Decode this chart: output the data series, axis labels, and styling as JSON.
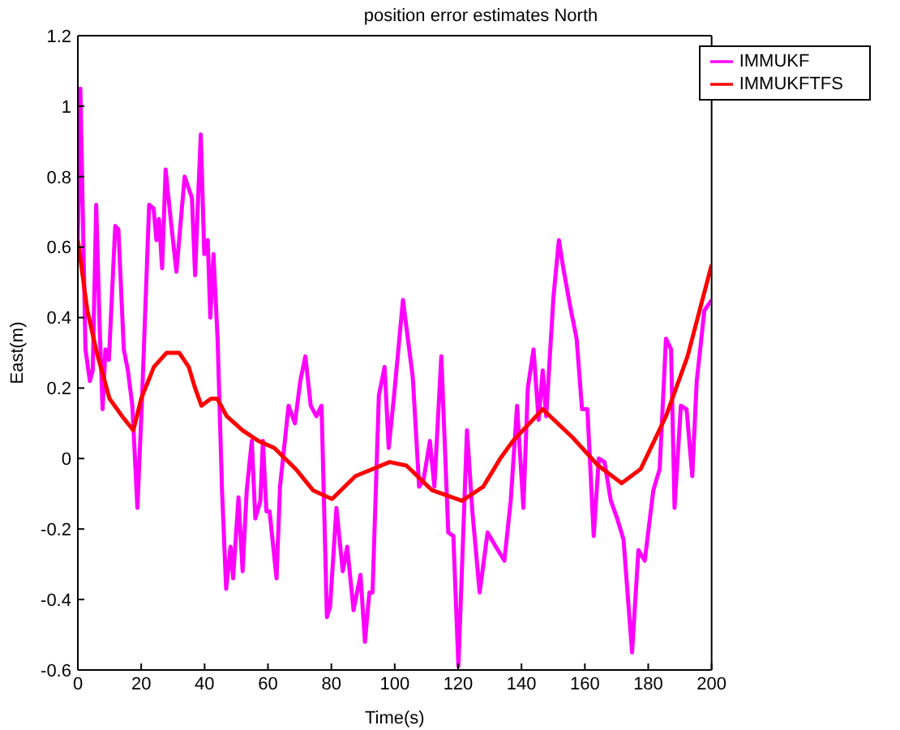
{
  "chart_data": {
    "type": "line",
    "title": "position error estimates North",
    "xlabel": "Time(s)",
    "ylabel": "East(m)",
    "xlim": [
      0,
      200
    ],
    "xticks": [
      0,
      20,
      40,
      60,
      80,
      100,
      120,
      140,
      160,
      180,
      200
    ],
    "ylim": [
      -0.6,
      1.2
    ],
    "yticks": [
      -0.6,
      -0.4,
      -0.2,
      0,
      0.2,
      0.4,
      0.6,
      0.8,
      1,
      1.2
    ],
    "grid": false,
    "legend": "top right",
    "marker": "none",
    "line_style": "solid",
    "series": [
      {
        "name": "IMMUKF",
        "color": "#ff00ff",
        "x": [
          0,
          0.8,
          2.4,
          3.8,
          4.7,
          5.8,
          6.9,
          7.8,
          8.7,
          9.8,
          11.8,
          12.8,
          14.5,
          15.8,
          17.2,
          18.8,
          20.3,
          22.5,
          23.9,
          24.8,
          25.6,
          26.6,
          27.7,
          29.3,
          31.1,
          33.7,
          36,
          37,
          38,
          38.8,
          39.9,
          41,
          41.8,
          42.8,
          44.1,
          45.5,
          46.8,
          48.2,
          49,
          50.7,
          52,
          53.3,
          54.9,
          56,
          57.6,
          58.4,
          59.5,
          60.5,
          62.7,
          63.8,
          66.5,
          68.5,
          70.2,
          71.8,
          73.5,
          75.3,
          76.9,
          78.6,
          79.6,
          81.6,
          83.6,
          85,
          87,
          89.2,
          90.6,
          92,
          93,
          95,
          96.8,
          98.1,
          99.7,
          102.6,
          105.7,
          107.7,
          109.1,
          111.1,
          112.5,
          114.7,
          116.9,
          118.5,
          120.1,
          122.8,
          124.5,
          126.8,
          129.3,
          131.9,
          134.6,
          136.6,
          138.6,
          140.6,
          142,
          143.8,
          145.4,
          146.7,
          147.8,
          150.1,
          151.8,
          153.2,
          155.4,
          157.4,
          159.1,
          160.8,
          162.8,
          164.4,
          166.2,
          168.2,
          170.2,
          172.2,
          174.9,
          176.9,
          178.9,
          181.6,
          183.6,
          185.6,
          187.2,
          188.3,
          190.3,
          192.1,
          193.9,
          195.3,
          196.4,
          197.7,
          200
        ],
        "values": [
          0.62,
          1.05,
          0.31,
          0.22,
          0.25,
          0.72,
          0.37,
          0.14,
          0.31,
          0.28,
          0.66,
          0.65,
          0.31,
          0.25,
          0.15,
          -0.14,
          0.18,
          0.72,
          0.71,
          0.62,
          0.68,
          0.54,
          0.82,
          0.68,
          0.53,
          0.8,
          0.74,
          0.52,
          0.75,
          0.92,
          0.58,
          0.62,
          0.4,
          0.58,
          0.34,
          -0.09,
          -0.37,
          -0.25,
          -0.34,
          -0.11,
          -0.32,
          -0.09,
          0.05,
          -0.17,
          -0.12,
          0.05,
          -0.15,
          -0.15,
          -0.34,
          -0.08,
          0.15,
          0.1,
          0.22,
          0.29,
          0.15,
          0.12,
          0.15,
          -0.45,
          -0.42,
          -0.14,
          -0.32,
          -0.25,
          -0.43,
          -0.33,
          -0.52,
          -0.38,
          -0.38,
          0.18,
          0.26,
          0.03,
          0.17,
          0.45,
          0.23,
          -0.08,
          -0.06,
          0.05,
          -0.08,
          0.29,
          -0.21,
          -0.22,
          -0.59,
          0.08,
          -0.15,
          -0.38,
          -0.21,
          -0.25,
          -0.29,
          -0.12,
          0.15,
          -0.14,
          0.2,
          0.31,
          0.11,
          0.25,
          0.12,
          0.46,
          0.62,
          0.54,
          0.43,
          0.34,
          0.14,
          0.14,
          -0.22,
          0,
          -0.01,
          -0.12,
          -0.17,
          -0.23,
          -0.55,
          -0.26,
          -0.29,
          -0.09,
          -0.03,
          0.34,
          0.31,
          -0.14,
          0.15,
          0.14,
          -0.05,
          0.22,
          0.31,
          0.42,
          0.45
        ]
      },
      {
        "name": "IMMUKFTFS",
        "color": "#ff0000",
        "x": [
          0,
          3,
          6,
          10,
          14,
          17.5,
          20,
          24,
          28,
          32,
          35,
          37,
          39,
          42,
          44,
          47,
          52,
          57,
          62,
          68.8,
          74.2,
          80.2,
          87.6,
          98.4,
          103.7,
          111.8,
          121.2,
          127.9,
          133.3,
          137.3,
          146.7,
          156.1,
          164.2,
          171.6,
          177.6,
          185.6,
          192.4,
          200
        ],
        "values": [
          0.62,
          0.42,
          0.3,
          0.17,
          0.12,
          0.08,
          0.17,
          0.26,
          0.3,
          0.3,
          0.26,
          0.2,
          0.15,
          0.17,
          0.17,
          0.12,
          0.08,
          0.05,
          0.03,
          -0.03,
          -0.09,
          -0.115,
          -0.05,
          -0.01,
          -0.02,
          -0.09,
          -0.12,
          -0.08,
          0,
          0.05,
          0.14,
          0.06,
          -0.02,
          -0.07,
          -0.03,
          0.12,
          0.29,
          0.55
        ]
      }
    ]
  }
}
